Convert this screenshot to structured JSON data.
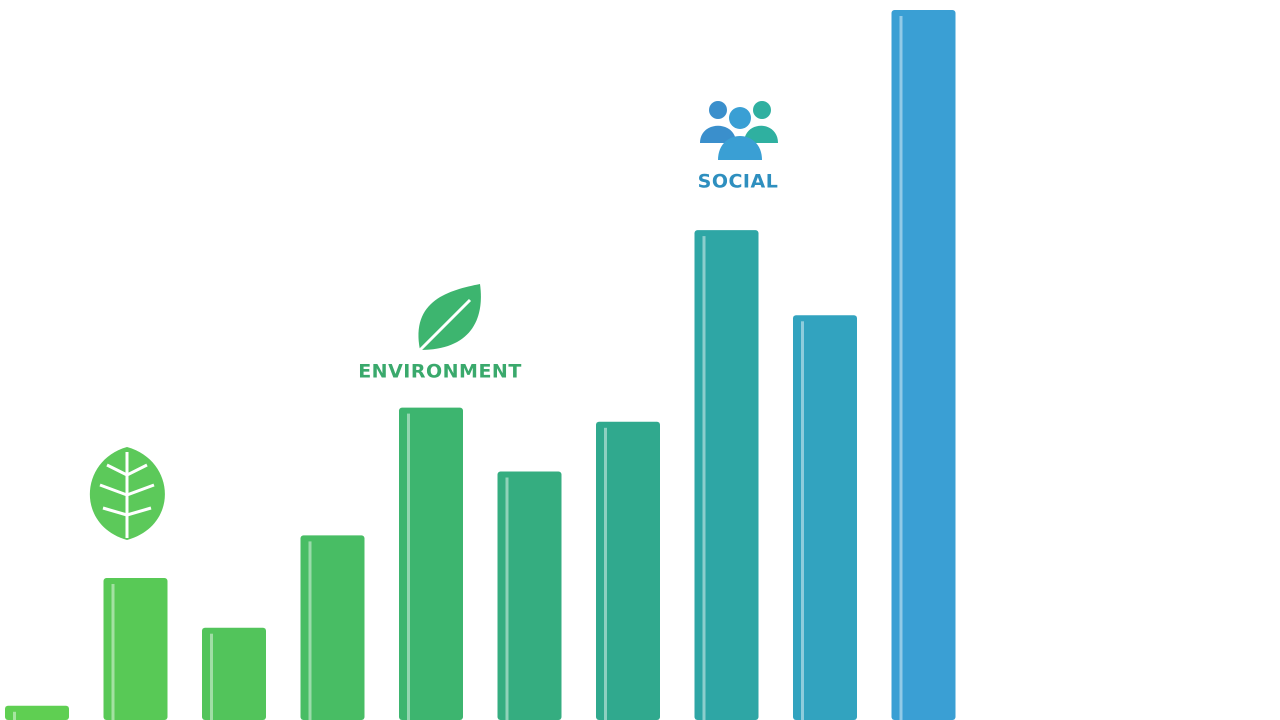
{
  "chart_data": {
    "type": "bar",
    "values": [
      2,
      20,
      13,
      26,
      44,
      35,
      42,
      69,
      57,
      100
    ],
    "colors": [
      "#5fcf52",
      "#58c956",
      "#52c45b",
      "#48bd64",
      "#3db56f",
      "#35ad80",
      "#30a98e",
      "#2ea6a5",
      "#32a3bf",
      "#3a9fd4"
    ],
    "annotations": [
      "ENVIRONMENT",
      "SOCIAL"
    ]
  }
}
